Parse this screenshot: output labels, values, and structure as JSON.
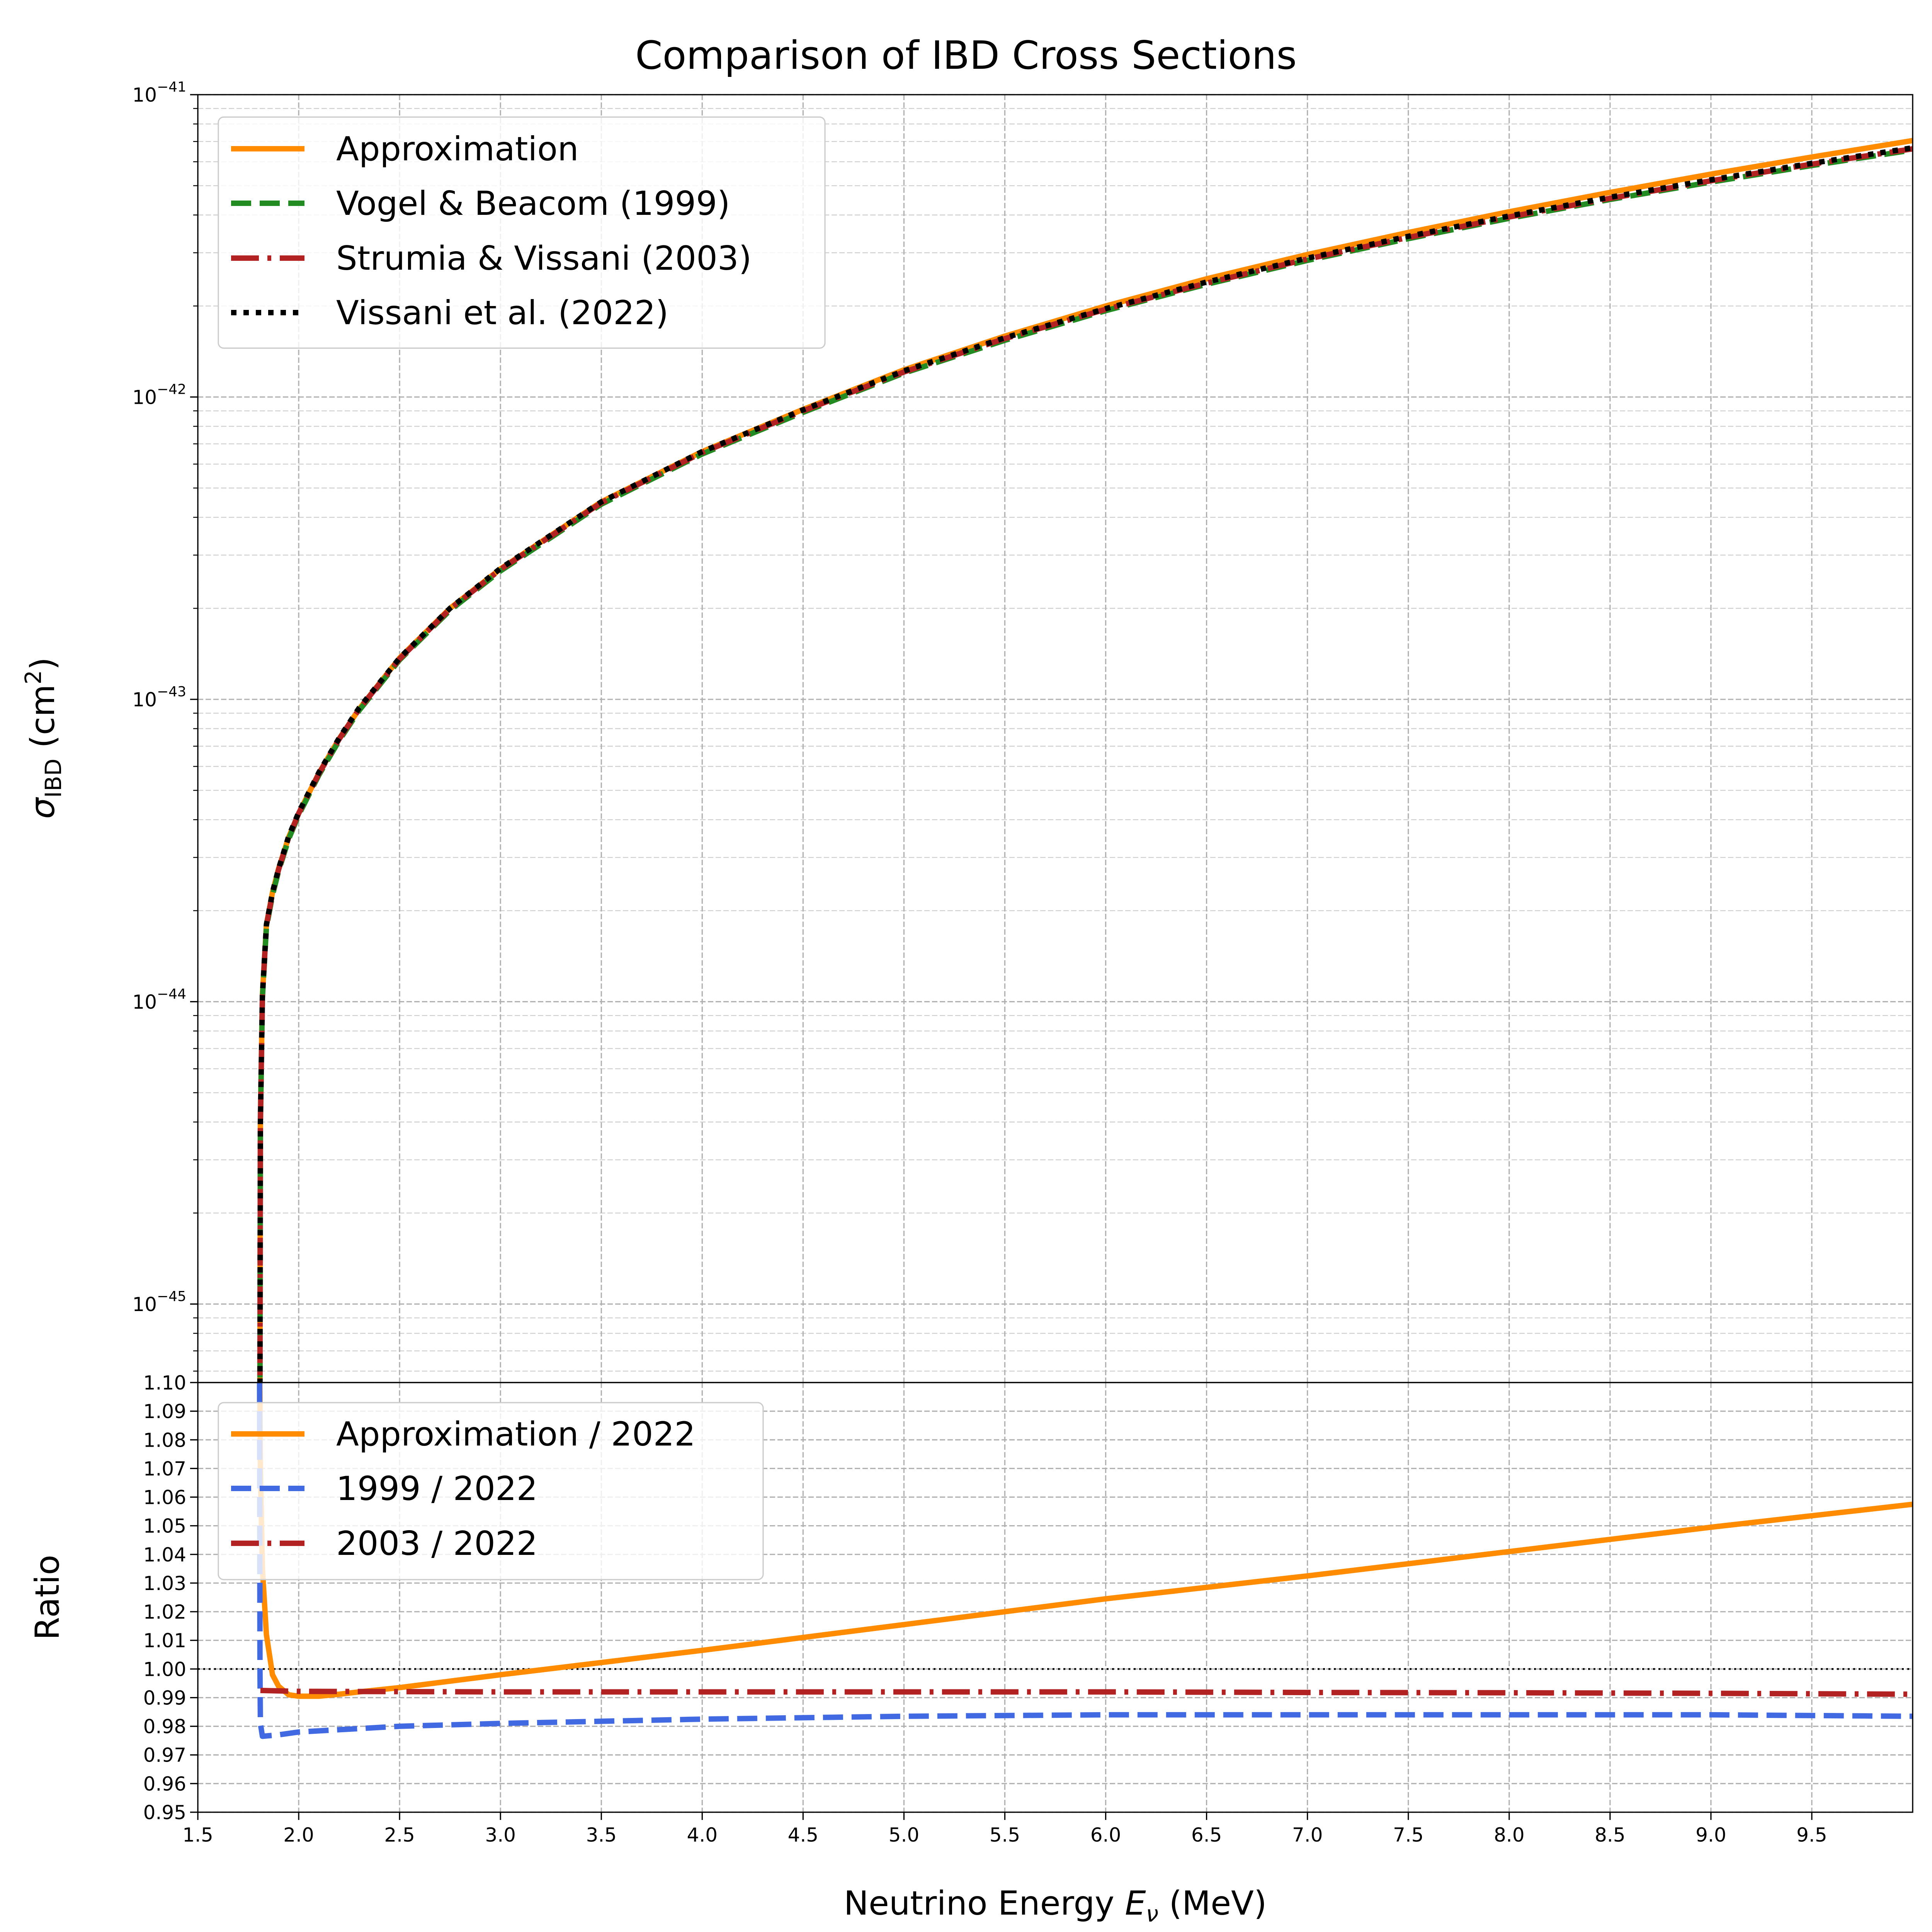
{
  "title": "Comparison of IBD Cross Sections",
  "xlabel": {
    "main": "Neutrino Energy ",
    "var": "E",
    "sub": "ν",
    "unit": " (MeV)"
  },
  "colors": {
    "approximation": "#ff8c00",
    "vogel_beacom_1999": "#228b22",
    "strumia_vissani_2003": "#b22222",
    "vissani_2022": "#000000",
    "ratio_1999": "#4169e1",
    "reference_line": "#000000"
  },
  "chart_data": [
    {
      "type": "line",
      "title": "Comparison of IBD Cross Sections",
      "ylabel": {
        "symbol": "σ",
        "sub": "IBD",
        "unit": " (cm",
        "unit_sup": "2",
        "unit_end": ")"
      },
      "xlim": [
        1.5,
        10.0
      ],
      "ylim": [
        5.5e-46,
        1e-41
      ],
      "yscale": "log",
      "grid": true,
      "legend_position": "upper-left",
      "y_ticks": [
        {
          "value": 1e-41,
          "base": "10",
          "exp": "−41"
        },
        {
          "value": 1e-42,
          "base": "10",
          "exp": "−42"
        },
        {
          "value": 1e-43,
          "base": "10",
          "exp": "−43"
        },
        {
          "value": 1e-44,
          "base": "10",
          "exp": "−44"
        },
        {
          "value": 1e-45,
          "base": "10",
          "exp": "−45"
        }
      ],
      "x": [
        1.806,
        1.81,
        1.82,
        1.84,
        1.87,
        1.9,
        1.95,
        2.0,
        2.1,
        2.2,
        2.3,
        2.5,
        2.75,
        3.0,
        3.5,
        4.0,
        4.5,
        5.0,
        5.5,
        6.0,
        6.5,
        7.0,
        7.5,
        8.0,
        8.5,
        9.0,
        9.5,
        10.0
      ],
      "series": [
        {
          "name": "Approximation",
          "style": "solid",
          "values": [
            1e-46,
            4e-45,
            1.05e-44,
            1.8e-44,
            2.3e-44,
            2.75e-44,
            3.5e-44,
            4.2e-44,
            5.7e-44,
            7.4e-44,
            9.3e-44,
            1.37e-43,
            2e-43,
            2.7e-43,
            4.5e-43,
            6.6e-43,
            9.1e-43,
            1.23e-42,
            1.59e-42,
            2e-42,
            2.46e-42,
            2.96e-42,
            3.5e-42,
            4.1e-42,
            4.75e-42,
            5.46e-42,
            6.22e-42,
            7.05e-42
          ]
        },
        {
          "name": "Vogel & Beacom (1999)",
          "style": "dashed",
          "values": [
            1e-46,
            3.9e-45,
            1.03e-44,
            1.76e-44,
            2.25e-44,
            2.7e-44,
            3.45e-44,
            4.15e-44,
            5.62e-44,
            7.3e-44,
            9.2e-44,
            1.35e-43,
            1.97e-43,
            2.66e-43,
            4.42e-43,
            6.48e-43,
            8.9e-43,
            1.2e-42,
            1.54e-42,
            1.93e-42,
            2.36e-42,
            2.83e-42,
            3.34e-42,
            3.9e-42,
            4.5e-42,
            5.14e-42,
            5.83e-42,
            6.56e-42
          ]
        },
        {
          "name": "Strumia & Vissani (2003)",
          "style": "dashdot",
          "values": [
            1e-46,
            3.97e-45,
            1.04e-44,
            1.79e-44,
            2.28e-44,
            2.73e-44,
            3.49e-44,
            4.2e-44,
            5.68e-44,
            7.38e-44,
            9.3e-44,
            1.36e-43,
            1.99e-43,
            2.69e-43,
            4.47e-43,
            6.55e-43,
            9e-43,
            1.21e-42,
            1.56e-42,
            1.95e-42,
            2.38e-42,
            2.86e-42,
            3.37e-42,
            3.94e-42,
            4.54e-42,
            5.19e-42,
            5.89e-42,
            6.62e-42
          ]
        },
        {
          "name": "Vissani et al. (2022)",
          "style": "dotted",
          "values": [
            1e-46,
            4e-45,
            1.05e-44,
            1.8e-44,
            2.3e-44,
            2.75e-44,
            3.52e-44,
            4.23e-44,
            5.73e-44,
            7.44e-44,
            9.38e-44,
            1.37e-43,
            2e-43,
            2.71e-43,
            4.5e-43,
            6.6e-43,
            9.07e-43,
            1.22e-42,
            1.57e-42,
            1.96e-42,
            2.4e-42,
            2.88e-42,
            3.4e-42,
            3.97e-42,
            4.58e-42,
            5.23e-42,
            5.93e-42,
            6.67e-42
          ]
        }
      ]
    },
    {
      "type": "line",
      "xlabel": "Neutrino Energy Eν (MeV)",
      "ylabel": "Ratio",
      "xlim": [
        1.5,
        10.0
      ],
      "ylim": [
        0.95,
        1.1
      ],
      "x_ticks": [
        "1.5",
        "2.0",
        "2.5",
        "3.0",
        "3.5",
        "4.0",
        "4.5",
        "5.0",
        "5.5",
        "6.0",
        "6.5",
        "7.0",
        "7.5",
        "8.0",
        "8.5",
        "9.0",
        "9.5"
      ],
      "y_ticks": [
        "0.95",
        "0.96",
        "0.97",
        "0.98",
        "0.99",
        "1.00",
        "1.01",
        "1.02",
        "1.03",
        "1.04",
        "1.05",
        "1.06",
        "1.07",
        "1.08",
        "1.09",
        "1.10"
      ],
      "reference_line": 1.0,
      "grid": true,
      "legend_position": "upper-left",
      "series": [
        {
          "name": "Approximation / 2022",
          "style": "solid",
          "x": [
            1.806,
            1.81,
            1.82,
            1.84,
            1.87,
            1.9,
            1.95,
            2.0,
            2.1,
            2.2,
            2.3,
            2.5,
            3.0,
            4.0,
            5.0,
            6.0,
            7.0,
            8.0,
            9.0,
            10.0
          ],
          "values": [
            1.11,
            1.07,
            1.035,
            1.012,
            0.998,
            0.994,
            0.991,
            0.9905,
            0.9905,
            0.9912,
            0.992,
            0.9935,
            0.998,
            1.0065,
            1.0155,
            1.0245,
            1.0325,
            1.041,
            1.0495,
            1.0575
          ]
        },
        {
          "name": "1999 / 2022",
          "style": "dashed",
          "x": [
            1.806,
            1.808,
            1.81,
            1.82,
            1.9,
            2.0,
            2.5,
            3.0,
            4.0,
            5.0,
            6.0,
            7.0,
            8.0,
            9.0,
            10.0
          ],
          "values": [
            1.1,
            1.0,
            0.981,
            0.9765,
            0.977,
            0.978,
            0.98,
            0.981,
            0.9825,
            0.9835,
            0.984,
            0.984,
            0.984,
            0.984,
            0.9835
          ]
        },
        {
          "name": "2003 / 2022",
          "style": "dashdot",
          "x": [
            1.81,
            2.0,
            3.0,
            4.0,
            5.0,
            6.0,
            7.0,
            8.0,
            9.0,
            10.0
          ],
          "values": [
            0.9925,
            0.9922,
            0.992,
            0.992,
            0.992,
            0.992,
            0.9918,
            0.9917,
            0.9915,
            0.9912
          ]
        }
      ]
    }
  ]
}
